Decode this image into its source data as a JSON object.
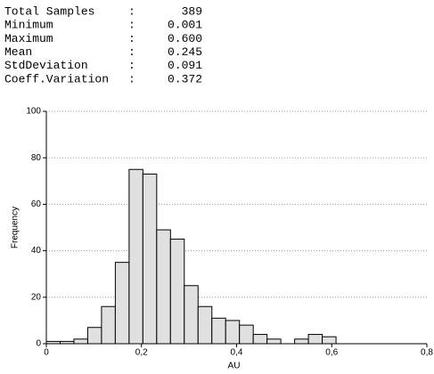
{
  "stats": {
    "separator": ":",
    "rows": [
      {
        "label": "Total Samples",
        "value": "389"
      },
      {
        "label": "Minimum",
        "value": "0.001"
      },
      {
        "label": "Maximum",
        "value": "0.600"
      },
      {
        "label": "Mean",
        "value": "0.245"
      },
      {
        "label": "StdDeviation",
        "value": "0.091"
      },
      {
        "label": "Coeff.Variation",
        "value": "0.372"
      }
    ]
  },
  "chart_data": {
    "type": "histogram",
    "x_label": "AU",
    "y_label": "Frequency",
    "bins": [
      0,
      0.029,
      0.058,
      0.087,
      0.116,
      0.145,
      0.174,
      0.203,
      0.232,
      0.261,
      0.29,
      0.319,
      0.348,
      0.377,
      0.406,
      0.435,
      0.464,
      0.493,
      0.522,
      0.551,
      0.58,
      0.609
    ],
    "values": [
      1,
      1,
      2,
      7,
      16,
      35,
      75,
      73,
      49,
      45,
      25,
      16,
      11,
      10,
      8,
      4,
      2,
      0,
      2,
      4,
      3
    ],
    "color": "#e0e0e0",
    "xlim": [
      0,
      0.8
    ],
    "xticks": [
      0,
      {
        "value": 0.2,
        "label": "0,2"
      },
      {
        "value": 0.4,
        "label": "0,4"
      },
      {
        "value": 0.6,
        "label": "0,6"
      },
      {
        "value": 0.8,
        "label": "0,8"
      }
    ],
    "ylim": [
      0,
      100
    ],
    "yticks": [
      0,
      20,
      40,
      60,
      80,
      100
    ],
    "grid": true
  }
}
